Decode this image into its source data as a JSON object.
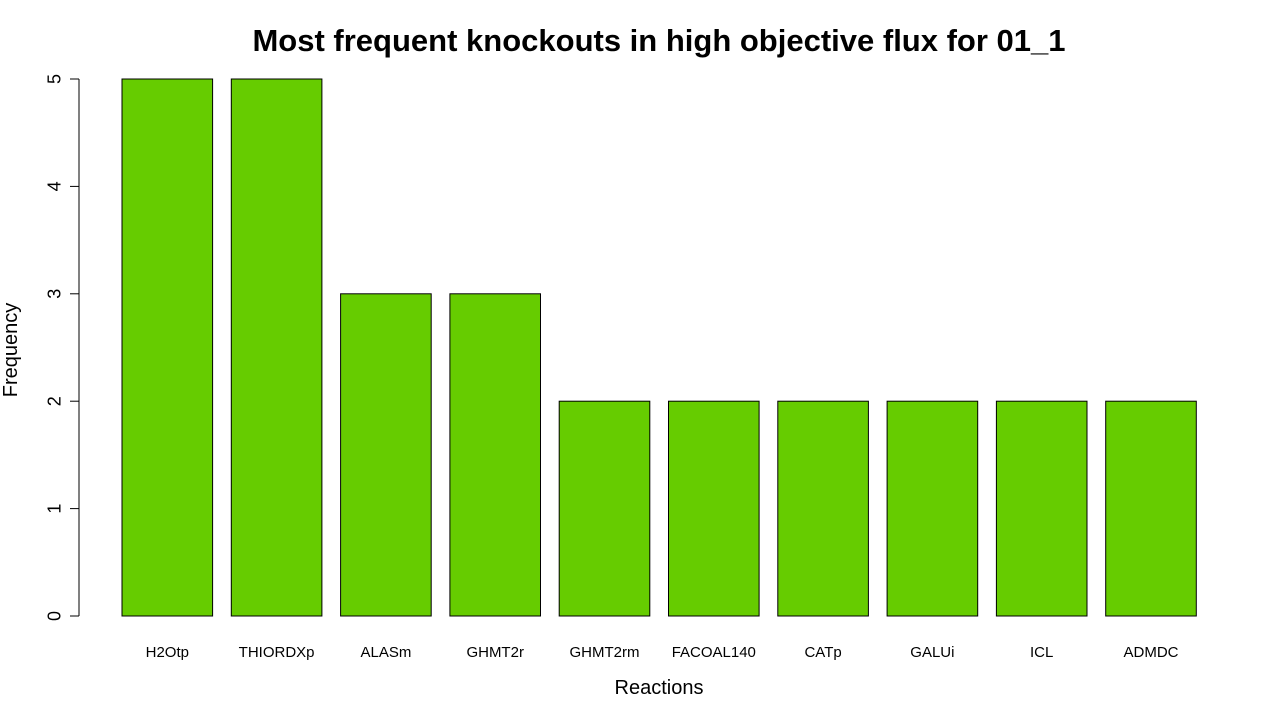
{
  "chart_data": {
    "type": "bar",
    "title": "Most frequent knockouts in high objective flux for 01_1",
    "xlabel": "Reactions",
    "ylabel": "Frequency",
    "categories": [
      "H2Otp",
      "THIORDXp",
      "ALASm",
      "GHMT2r",
      "GHMT2rm",
      "FACOAL140",
      "CATp",
      "GALUi",
      "ICL",
      "ADMDC"
    ],
    "values": [
      5,
      5,
      3,
      3,
      2,
      2,
      2,
      2,
      2,
      2
    ],
    "ylim": [
      0,
      5
    ],
    "yticks": [
      0,
      1,
      2,
      3,
      4,
      5
    ],
    "bar_color": "#66cc00",
    "bar_border_color": "#000000",
    "grid": false,
    "legend": "none"
  }
}
